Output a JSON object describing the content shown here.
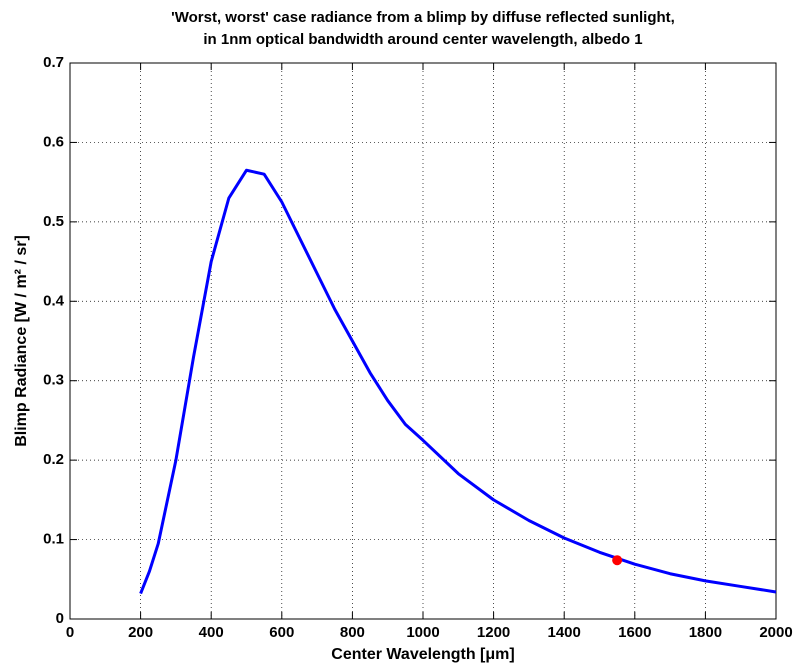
{
  "chart_data": {
    "type": "line",
    "title": [
      "'Worst, worst' case radiance from a blimp by diffuse reflected sunlight,",
      "in 1nm optical bandwidth around center wavelength, albedo 1"
    ],
    "xlabel": "Center Wavelength [μm]",
    "ylabel": "Blimp Radiance [W / m² / sr]",
    "series": [
      {
        "color": "#0000ff",
        "x": [
          200,
          225,
          250,
          300,
          350,
          400,
          450,
          500,
          550,
          600,
          650,
          700,
          750,
          800,
          850,
          900,
          950,
          1000,
          1100,
          1200,
          1300,
          1400,
          1500,
          1600,
          1700,
          1800,
          1900,
          2000
        ],
        "values": [
          0.032,
          0.06,
          0.095,
          0.2,
          0.33,
          0.45,
          0.53,
          0.565,
          0.56,
          0.525,
          0.48,
          0.435,
          0.39,
          0.35,
          0.31,
          0.275,
          0.245,
          0.225,
          0.183,
          0.15,
          0.124,
          0.102,
          0.084,
          0.069,
          0.057,
          0.048,
          0.041,
          0.034
        ]
      },
      {
        "color": "#ff0000",
        "marker": "o",
        "x": [
          1550
        ],
        "values": [
          0.074
        ]
      }
    ],
    "xlim": [
      0,
      2000
    ],
    "xticks": [
      0,
      200,
      400,
      600,
      800,
      1000,
      1200,
      1400,
      1600,
      1800,
      2000
    ],
    "ylim": [
      0,
      0.7
    ],
    "yticks": [
      0,
      0.1,
      0.2,
      0.3,
      0.4,
      0.5,
      0.6,
      0.7
    ],
    "grid": true
  }
}
